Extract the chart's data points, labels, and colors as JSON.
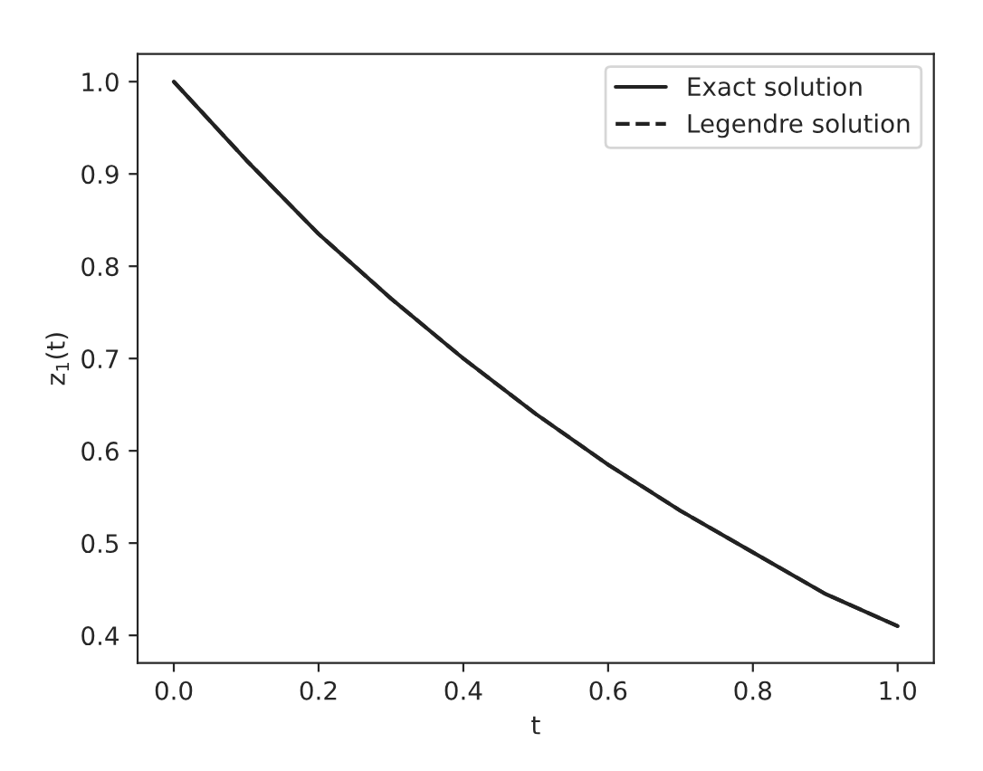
{
  "chart_data": {
    "type": "line",
    "xlabel": "t",
    "ylabel": "z$_{1}$(t)",
    "x": [
      0,
      0.1,
      0.2,
      0.3,
      0.4,
      0.5,
      0.6,
      0.7,
      0.8,
      0.9,
      1.0
    ],
    "series": [
      {
        "name": "Exact solution",
        "color": "#222222",
        "line_style": "solid",
        "values": [
          1.0,
          0.915,
          0.835,
          0.765,
          0.7,
          0.64,
          0.585,
          0.535,
          0.49,
          0.445,
          0.41
        ]
      },
      {
        "name": "Legendre solution",
        "color": "#222222",
        "line_style": "dashed",
        "values": [
          1.0,
          0.915,
          0.835,
          0.765,
          0.7,
          0.64,
          0.585,
          0.535,
          0.49,
          0.445,
          0.41
        ]
      }
    ],
    "xlim": [
      -0.05,
      1.05
    ],
    "ylim": [
      0.37,
      1.03
    ],
    "xticks": [
      {
        "value": 0,
        "label": "0.0"
      },
      0.2,
      0.4,
      0.6,
      0.8,
      {
        "value": 1,
        "label": "1.0"
      }
    ],
    "yticks": [
      0.4,
      0.5,
      0.6,
      0.7,
      0.8,
      0.9,
      {
        "value": 1,
        "label": "1.0"
      }
    ],
    "legend": "top right",
    "grid": false,
    "marker": "none"
  }
}
